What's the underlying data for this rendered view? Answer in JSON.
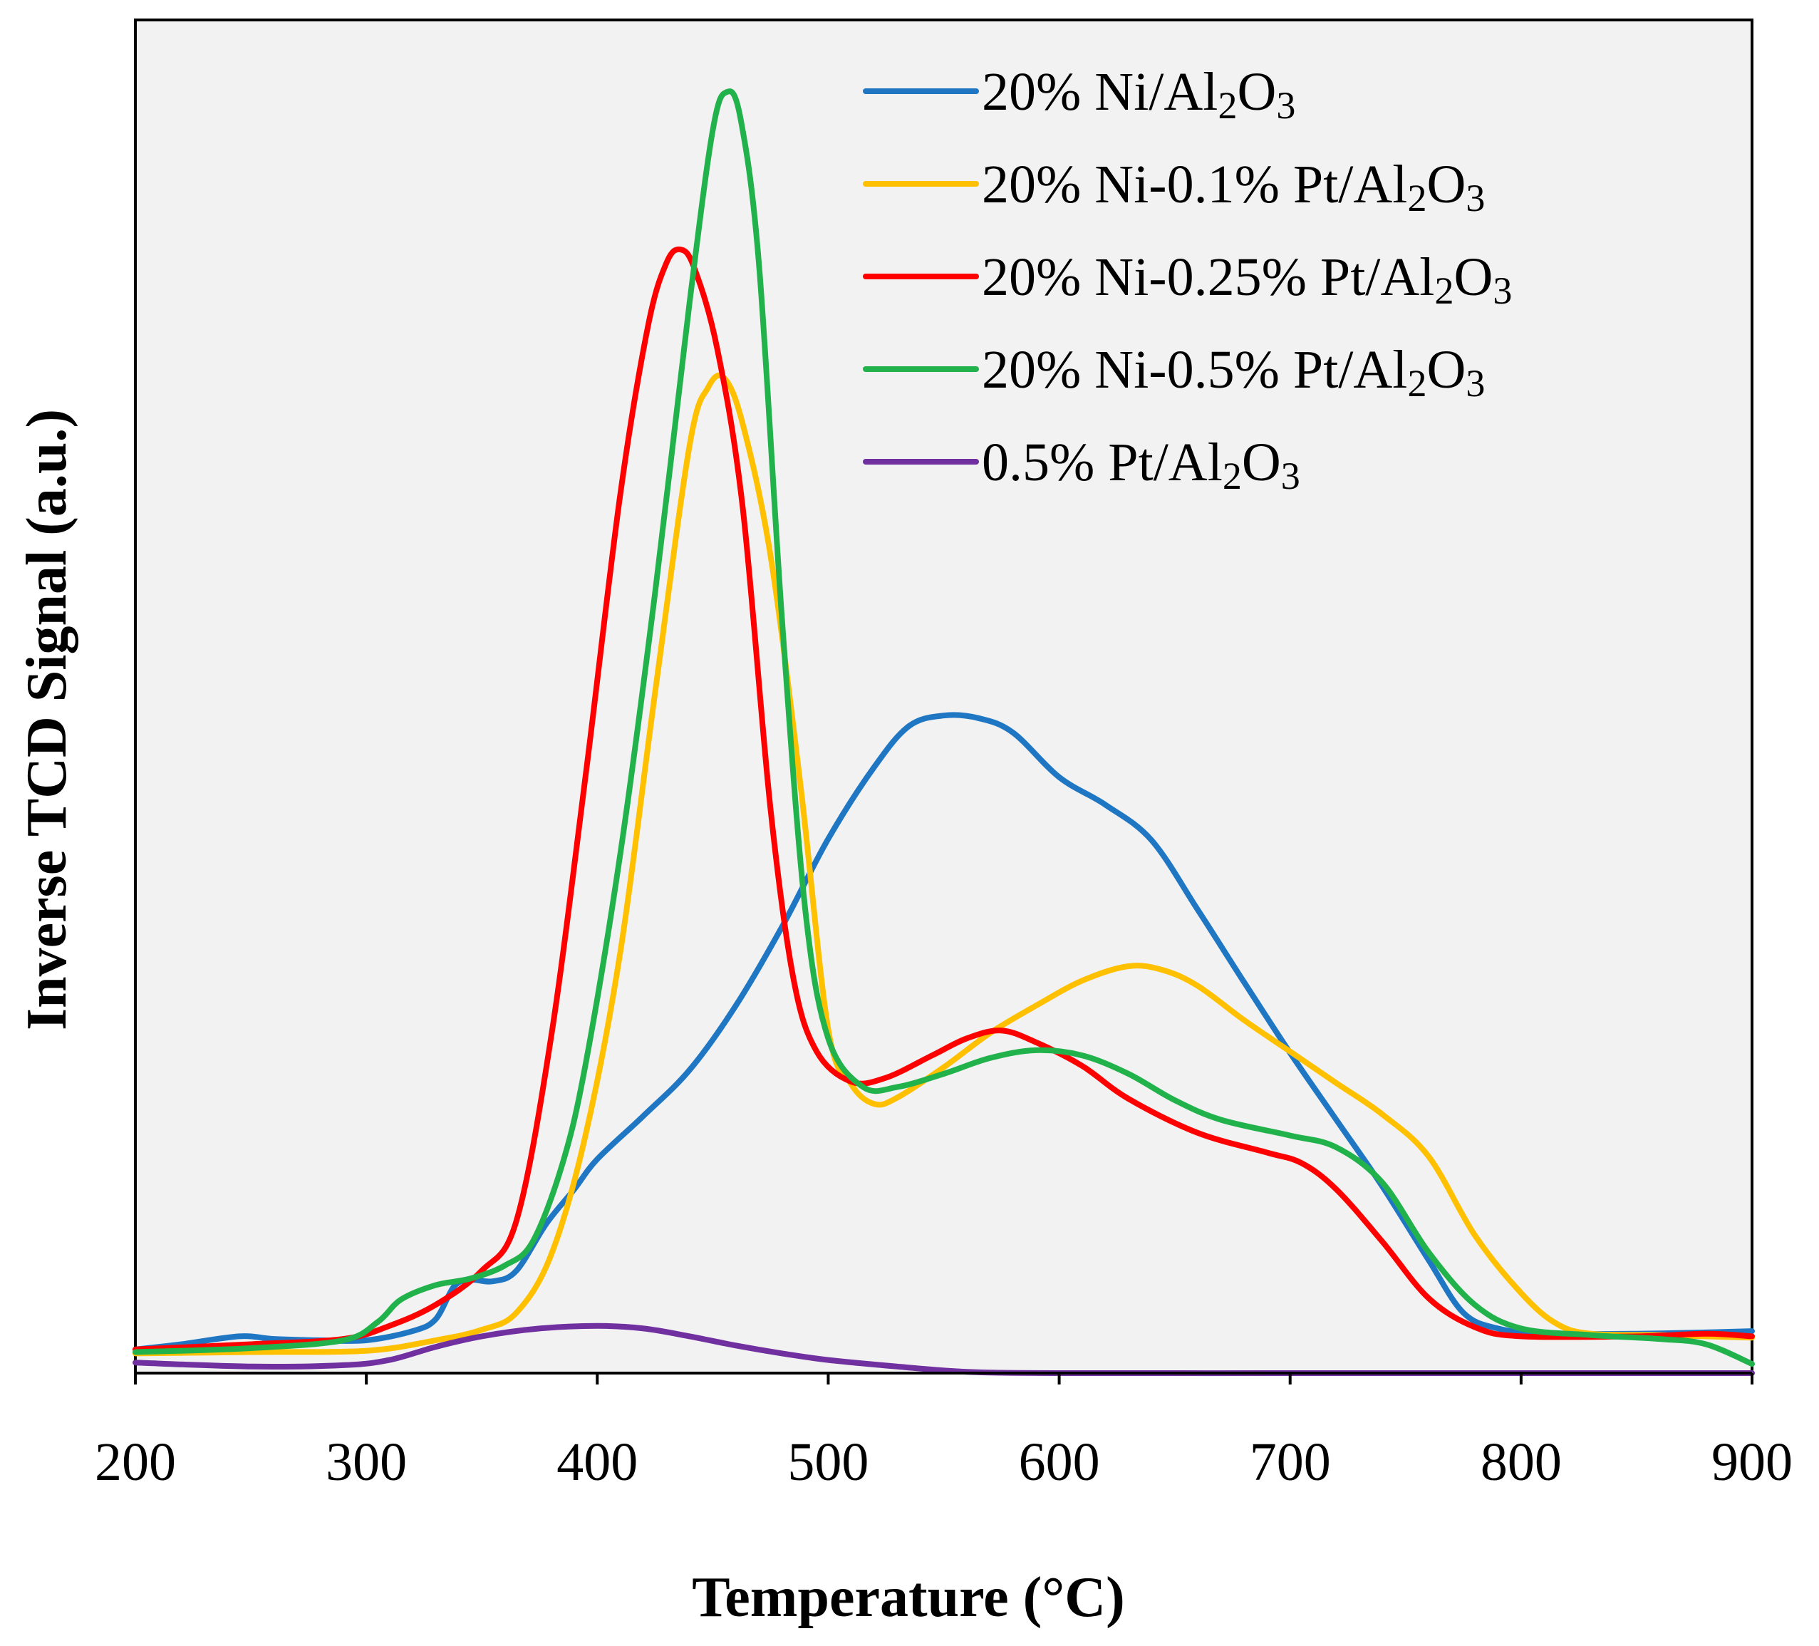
{
  "chart_data": {
    "type": "line",
    "title": "",
    "xlabel": "Temperature (°C)",
    "ylabel": "Inverse TCD Signal (a.u.)",
    "xlim": [
      200,
      900
    ],
    "ylim": [
      0,
      100
    ],
    "xticks": [
      200,
      300,
      400,
      500,
      600,
      700,
      800,
      900
    ],
    "yticks_shown": false,
    "grid": false,
    "legend_position": "top-right",
    "series": [
      {
        "name": "20% Ni/Al2O3",
        "legend": {
          "prefix": "20% Ni/Al",
          "sub1": "2",
          "mid": "O",
          "sub2": "3"
        },
        "color": "#1f77c4",
        "points": [
          [
            200,
            1.8
          ],
          [
            220,
            2.2
          ],
          [
            245,
            2.8
          ],
          [
            260,
            2.6
          ],
          [
            280,
            2.5
          ],
          [
            300,
            2.5
          ],
          [
            320,
            3.2
          ],
          [
            330,
            4.1
          ],
          [
            338,
            6.6
          ],
          [
            345,
            7.1
          ],
          [
            355,
            7.0
          ],
          [
            365,
            7.8
          ],
          [
            378,
            11.4
          ],
          [
            390,
            14.0
          ],
          [
            400,
            16.3
          ],
          [
            420,
            19.6
          ],
          [
            440,
            23.1
          ],
          [
            460,
            28.0
          ],
          [
            480,
            34.0
          ],
          [
            500,
            40.7
          ],
          [
            520,
            46.2
          ],
          [
            535,
            49.3
          ],
          [
            550,
            50.1
          ],
          [
            565,
            49.9
          ],
          [
            580,
            48.8
          ],
          [
            600,
            45.4
          ],
          [
            620,
            43.3
          ],
          [
            640,
            40.6
          ],
          [
            660,
            35.3
          ],
          [
            680,
            29.8
          ],
          [
            700,
            24.4
          ],
          [
            720,
            19.3
          ],
          [
            740,
            14.2
          ],
          [
            760,
            8.6
          ],
          [
            775,
            4.6
          ],
          [
            790,
            3.4
          ],
          [
            810,
            3.0
          ],
          [
            850,
            3.0
          ],
          [
            880,
            3.1
          ],
          [
            900,
            3.2
          ]
        ]
      },
      {
        "name": "20% Ni-0.1% Pt/Al2O3",
        "legend": {
          "prefix": "20% Ni-0.1% Pt/Al",
          "sub1": "2",
          "mid": "O",
          "sub2": "3"
        },
        "color": "#ffc000",
        "points": [
          [
            200,
            1.5
          ],
          [
            250,
            1.6
          ],
          [
            300,
            1.7
          ],
          [
            330,
            2.5
          ],
          [
            350,
            3.3
          ],
          [
            365,
            4.6
          ],
          [
            380,
            9.0
          ],
          [
            395,
            18.2
          ],
          [
            410,
            32.1
          ],
          [
            425,
            51.8
          ],
          [
            440,
            70.7
          ],
          [
            448,
            75.1
          ],
          [
            455,
            75.8
          ],
          [
            463,
            72.3
          ],
          [
            475,
            62.3
          ],
          [
            488,
            44.8
          ],
          [
            500,
            26.2
          ],
          [
            510,
            22.0
          ],
          [
            520,
            20.5
          ],
          [
            530,
            21.0
          ],
          [
            550,
            23.3
          ],
          [
            570,
            25.9
          ],
          [
            590,
            28.0
          ],
          [
            610,
            29.9
          ],
          [
            630,
            31.0
          ],
          [
            645,
            30.7
          ],
          [
            660,
            29.5
          ],
          [
            680,
            26.9
          ],
          [
            700,
            24.5
          ],
          [
            720,
            22.1
          ],
          [
            740,
            19.7
          ],
          [
            760,
            16.5
          ],
          [
            780,
            10.5
          ],
          [
            800,
            6.1
          ],
          [
            815,
            3.8
          ],
          [
            830,
            3.0
          ],
          [
            860,
            2.9
          ],
          [
            900,
            2.7
          ]
        ]
      },
      {
        "name": "20% Ni-0.25% Pt/Al2O3",
        "legend": {
          "prefix": "20% Ni-0.25% Pt/Al",
          "sub1": "2",
          "mid": "O",
          "sub2": "3"
        },
        "color": "#ff0000",
        "points": [
          [
            200,
            1.8
          ],
          [
            250,
            2.2
          ],
          [
            290,
            2.6
          ],
          [
            310,
            3.6
          ],
          [
            330,
            5.2
          ],
          [
            350,
            7.8
          ],
          [
            365,
            11.6
          ],
          [
            380,
            25.6
          ],
          [
            395,
            45.6
          ],
          [
            410,
            67.0
          ],
          [
            422,
            79.8
          ],
          [
            430,
            84.6
          ],
          [
            436,
            85.6
          ],
          [
            442,
            84.2
          ],
          [
            452,
            78.0
          ],
          [
            463,
            65.9
          ],
          [
            475,
            43.0
          ],
          [
            485,
            30.0
          ],
          [
            495,
            24.5
          ],
          [
            510,
            22.2
          ],
          [
            525,
            22.5
          ],
          [
            545,
            24.2
          ],
          [
            560,
            25.5
          ],
          [
            575,
            26.1
          ],
          [
            590,
            25.2
          ],
          [
            610,
            23.4
          ],
          [
            630,
            20.9
          ],
          [
            660,
            18.3
          ],
          [
            690,
            16.8
          ],
          [
            705,
            16.0
          ],
          [
            720,
            14.0
          ],
          [
            740,
            10.0
          ],
          [
            760,
            5.7
          ],
          [
            780,
            3.5
          ],
          [
            800,
            2.8
          ],
          [
            850,
            2.8
          ],
          [
            880,
            3.0
          ],
          [
            900,
            2.8
          ]
        ]
      },
      {
        "name": "20% Ni-0.5% Pt/Al2O3",
        "legend": {
          "prefix": "20% Ni-0.5% Pt/Al",
          "sub1": "2",
          "mid": "O",
          "sub2": "3"
        },
        "color": "#22b24c",
        "points": [
          [
            200,
            1.6
          ],
          [
            250,
            1.9
          ],
          [
            290,
            2.5
          ],
          [
            305,
            3.9
          ],
          [
            315,
            5.6
          ],
          [
            330,
            6.7
          ],
          [
            345,
            7.2
          ],
          [
            360,
            8.2
          ],
          [
            372,
            10.0
          ],
          [
            385,
            16.0
          ],
          [
            395,
            23.6
          ],
          [
            410,
            39.6
          ],
          [
            425,
            59.4
          ],
          [
            440,
            81.6
          ],
          [
            450,
            94.7
          ],
          [
            456,
            97.6
          ],
          [
            462,
            95.6
          ],
          [
            470,
            84.5
          ],
          [
            480,
            57.4
          ],
          [
            490,
            35.4
          ],
          [
            500,
            25.5
          ],
          [
            515,
            21.8
          ],
          [
            530,
            21.8
          ],
          [
            550,
            22.8
          ],
          [
            570,
            24.0
          ],
          [
            590,
            24.6
          ],
          [
            610,
            24.2
          ],
          [
            630,
            22.8
          ],
          [
            650,
            20.8
          ],
          [
            670,
            19.3
          ],
          [
            700,
            18.1
          ],
          [
            720,
            17.2
          ],
          [
            740,
            14.5
          ],
          [
            760,
            9.2
          ],
          [
            780,
            5.2
          ],
          [
            800,
            3.4
          ],
          [
            830,
            2.9
          ],
          [
            860,
            2.6
          ],
          [
            880,
            2.2
          ],
          [
            900,
            0.7
          ]
        ]
      },
      {
        "name": "0.5% Pt/Al2O3",
        "legend": {
          "prefix": "0.5% Pt/Al",
          "sub1": "2",
          "mid": "O",
          "sub2": "3"
        },
        "color": "#7030a0",
        "points": [
          [
            200,
            0.8
          ],
          [
            250,
            0.5
          ],
          [
            290,
            0.6
          ],
          [
            310,
            1.0
          ],
          [
            330,
            2.0
          ],
          [
            350,
            2.8
          ],
          [
            375,
            3.4
          ],
          [
            400,
            3.6
          ],
          [
            420,
            3.4
          ],
          [
            440,
            2.8
          ],
          [
            460,
            2.1
          ],
          [
            480,
            1.5
          ],
          [
            500,
            1.0
          ],
          [
            530,
            0.5
          ],
          [
            560,
            0.1
          ],
          [
            600,
            0.0
          ],
          [
            700,
            0.0
          ],
          [
            800,
            0.0
          ],
          [
            900,
            0.0
          ]
        ]
      }
    ]
  }
}
